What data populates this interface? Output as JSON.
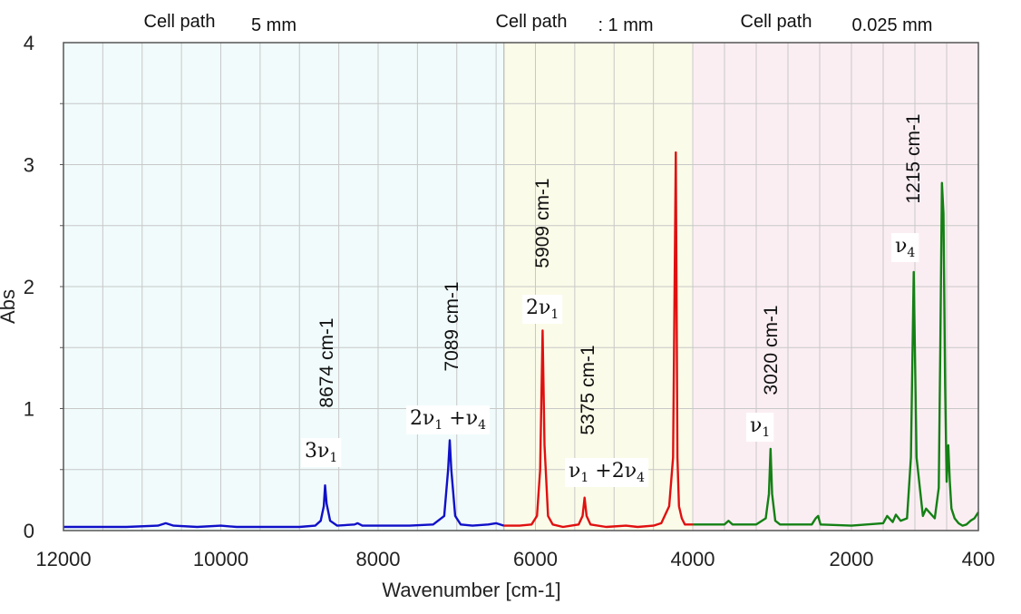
{
  "chart_data": {
    "type": "line",
    "title": "",
    "xlabel": "Wavenumber [cm-1]",
    "ylabel": "Abs",
    "xlim": [
      12000,
      400
    ],
    "ylim": [
      0,
      4
    ],
    "x_ticks": [
      "12000",
      "10000",
      "8000",
      "6000",
      "4000",
      "2000",
      "400"
    ],
    "y_ticks": [
      "0",
      "1",
      "2",
      "3",
      "4"
    ],
    "grid": true,
    "segments": [
      {
        "label": "Cell path",
        "value": "5 mm",
        "x_range": [
          12000,
          6400
        ],
        "bg": "#f1fbfb"
      },
      {
        "label": "Cell path",
        "value": ": 1 mm",
        "x_range": [
          6400,
          4000
        ],
        "bg": "#fbfbe9"
      },
      {
        "label": "Cell path",
        "value": "0.025 mm",
        "x_range": [
          4000,
          400
        ],
        "bg": "#fbeef3"
      }
    ],
    "series": [
      {
        "color": "#1010c8",
        "x": [
          12000,
          11600,
          11200,
          10800,
          10700,
          10600,
          10300,
          10000,
          9800,
          9400,
          9000,
          8800,
          8730,
          8690,
          8674,
          8655,
          8610,
          8520,
          8300,
          8260,
          8200,
          7600,
          7300,
          7160,
          7110,
          7089,
          7070,
          7020,
          6950,
          6800,
          6600,
          6500,
          6400
        ],
        "y": [
          0.03,
          0.03,
          0.03,
          0.04,
          0.06,
          0.04,
          0.03,
          0.04,
          0.03,
          0.03,
          0.03,
          0.04,
          0.08,
          0.2,
          0.37,
          0.22,
          0.08,
          0.04,
          0.05,
          0.06,
          0.04,
          0.04,
          0.05,
          0.12,
          0.5,
          0.74,
          0.5,
          0.12,
          0.05,
          0.04,
          0.05,
          0.06,
          0.04
        ]
      },
      {
        "color": "#e01010",
        "x": [
          6400,
          6200,
          6050,
          5980,
          5940,
          5909,
          5885,
          5840,
          5780,
          5650,
          5450,
          5400,
          5375,
          5350,
          5300,
          5100,
          4850,
          4700,
          4500,
          4400,
          4300,
          4250,
          4215,
          4195,
          4175,
          4140,
          4100,
          4000
        ],
        "y": [
          0.04,
          0.04,
          0.05,
          0.12,
          0.5,
          1.64,
          0.7,
          0.12,
          0.05,
          0.03,
          0.05,
          0.12,
          0.27,
          0.12,
          0.05,
          0.03,
          0.04,
          0.03,
          0.04,
          0.06,
          0.2,
          0.6,
          3.1,
          0.6,
          0.2,
          0.1,
          0.05,
          0.05
        ]
      },
      {
        "color": "#148014",
        "x": [
          4000,
          3600,
          3550,
          3500,
          3200,
          3080,
          3040,
          3020,
          3000,
          2960,
          2900,
          2500,
          2450,
          2420,
          2390,
          2000,
          1600,
          1550,
          1480,
          1440,
          1380,
          1300,
          1250,
          1215,
          1180,
          1100,
          1060,
          950,
          900,
          880,
          860,
          840,
          820,
          800,
          780,
          760,
          740,
          700,
          650,
          600,
          550,
          500,
          450,
          400
        ],
        "y": [
          0.05,
          0.05,
          0.08,
          0.05,
          0.05,
          0.1,
          0.3,
          0.67,
          0.3,
          0.08,
          0.05,
          0.05,
          0.1,
          0.12,
          0.05,
          0.04,
          0.06,
          0.12,
          0.07,
          0.13,
          0.08,
          0.1,
          0.6,
          2.12,
          0.6,
          0.12,
          0.18,
          0.1,
          0.35,
          1.5,
          2.85,
          2.6,
          1.2,
          0.4,
          0.7,
          0.4,
          0.18,
          0.1,
          0.06,
          0.04,
          0.05,
          0.08,
          0.1,
          0.15
        ]
      }
    ],
    "annotations": [
      {
        "label": "8674 cm-1",
        "mode": [
          "3",
          "ν",
          "1"
        ],
        "x": 8674,
        "color": "#1010c8"
      },
      {
        "label": "7089 cm-1",
        "mode": [
          "2",
          "ν",
          "1",
          "+",
          "ν",
          "4"
        ],
        "x": 7089,
        "color": "#1010c8"
      },
      {
        "label": "5909 cm-1",
        "mode": [
          "2",
          "ν",
          "1"
        ],
        "x": 5909,
        "color": "#e01010"
      },
      {
        "label": "5375 cm-1",
        "mode": [
          "ν",
          "1",
          "+2",
          "ν",
          "4"
        ],
        "x": 5375,
        "color": "#e01010"
      },
      {
        "label": "3020 cm-1",
        "mode": [
          "ν",
          "1"
        ],
        "x": 3020,
        "color": "#148014"
      },
      {
        "label": "1215 cm-1",
        "mode": [
          "ν",
          "4"
        ],
        "x": 1215,
        "color": "#148014"
      }
    ]
  }
}
